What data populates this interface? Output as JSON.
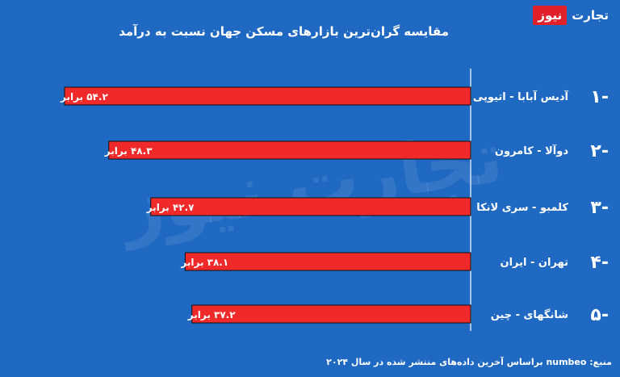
{
  "brand": {
    "part1": "تجارت",
    "part2": "نیوز",
    "accent": "#e0212b"
  },
  "watermark": "تجارت نیوز",
  "source": "منبع: numbeo  براساس آخرین داده‌های منتشر شده در سال ۲۰۲۴",
  "colors": {
    "background": "#1f69c2",
    "bar": "#f02a2a",
    "bar_outline": "#111111"
  },
  "chart_data": {
    "type": "bar",
    "orientation": "horizontal",
    "title": "مقایسه گران‌ترین بازارهای مسکن جهان نسبت به درآمد",
    "ranks": [
      "-۱",
      "-۲",
      "-۳",
      "-۴",
      "-۵"
    ],
    "categories": [
      "آدیس آبابا - اتیوپی",
      "دوآلا - کامرون",
      "کلمبو - سری لانکا",
      "تهران - ایران",
      "شانگهای - چین"
    ],
    "values": [
      54.2,
      48.3,
      42.7,
      38.1,
      37.2
    ],
    "value_labels": [
      "۵۴.۲ برابر",
      "۴۸.۳ برابر",
      "۴۲.۷ برابر",
      "۳۸.۱ برابر",
      "۳۷.۲ برابر"
    ],
    "xlim": [
      0,
      60
    ],
    "grid": false
  }
}
